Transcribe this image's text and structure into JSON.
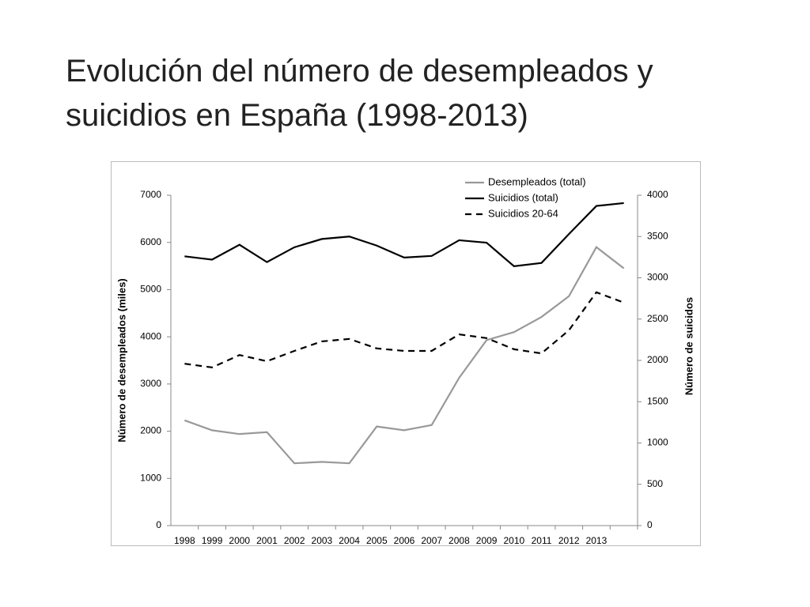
{
  "title": "Evolución del número de desempleados y suicidios en España (1998-2013)",
  "chart_data": {
    "type": "line",
    "categories": [
      "1998",
      "1999",
      "2000",
      "2001",
      "2002",
      "2003",
      "2004",
      "2005",
      "2006",
      "2007",
      "2008",
      "2009",
      "2010",
      "2011",
      "2012",
      "2013",
      null
    ],
    "ylabel": "Número de desempleados (miles)",
    "y2label": "Número de suicidos",
    "ylim": [
      0,
      7000
    ],
    "yticks": [
      0,
      1000,
      2000,
      3000,
      4000,
      5000,
      6000,
      7000
    ],
    "y2lim": [
      0,
      4000
    ],
    "y2ticks": [
      0,
      500,
      1000,
      1500,
      2000,
      2500,
      3000,
      3500,
      4000
    ],
    "grid": false,
    "legend": "upper right",
    "series": [
      {
        "name": "Desempleados (total)",
        "color": "#999999",
        "style": "solid",
        "axis": "y",
        "values": [
          2230,
          2020,
          1940,
          1980,
          1320,
          1350,
          1320,
          2100,
          2020,
          2130,
          3130,
          3930,
          4100,
          4420,
          4860,
          5900,
          5450
        ]
      },
      {
        "name": "Suicidios (total)",
        "color": "#000000",
        "style": "solid",
        "axis": "y2",
        "values": [
          3260,
          3220,
          3400,
          3190,
          3370,
          3470,
          3500,
          3390,
          3245,
          3265,
          3455,
          3425,
          3140,
          3180,
          3530,
          3870,
          3905
        ]
      },
      {
        "name": "Suicidios 20-64",
        "color": "#000000",
        "style": "dashed",
        "axis": "y2",
        "values": [
          1960,
          1915,
          2065,
          1990,
          2115,
          2230,
          2260,
          2145,
          2115,
          2115,
          2315,
          2270,
          2135,
          2085,
          2365,
          2825,
          2700
        ]
      }
    ]
  }
}
